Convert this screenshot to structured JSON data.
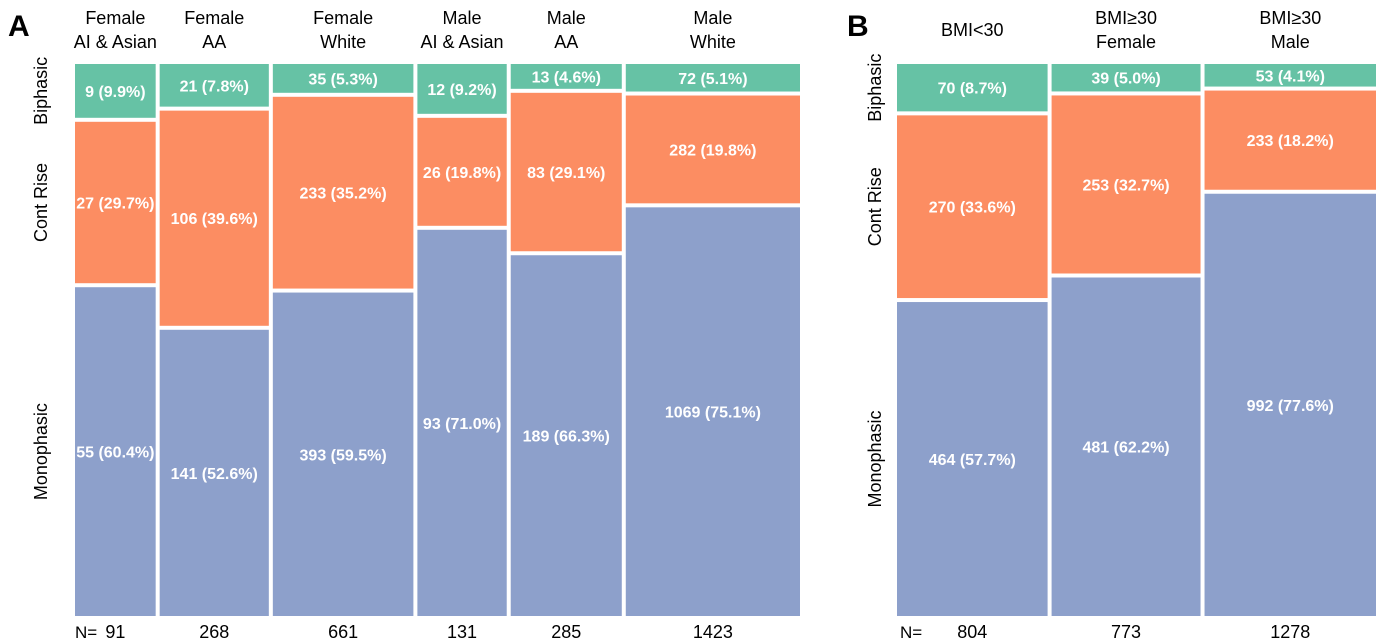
{
  "colors": {
    "biphasic": "#66c2a5",
    "cont_rise": "#fc8d62",
    "monophasic": "#8da0cb",
    "label_text": "#ffffff",
    "separator": "#ffffff"
  },
  "n_prefix": "N=",
  "chart_data": [
    {
      "type": "mosaic",
      "panel_label": "A",
      "row_labels": [
        "Biphasic",
        "Cont Rise",
        "Monophasic"
      ],
      "categories": [
        {
          "line1": "Female",
          "line2": "AI & Asian",
          "n": 91,
          "values": {
            "Biphasic": 9,
            "Cont Rise": 27,
            "Monophasic": 55
          },
          "labels": {
            "Biphasic": "9 (9.9%)",
            "Cont Rise": "27 (29.7%)",
            "Monophasic": "55 (60.4%)"
          }
        },
        {
          "line1": "Female",
          "line2": "AA",
          "n": 268,
          "values": {
            "Biphasic": 21,
            "Cont Rise": 106,
            "Monophasic": 141
          },
          "labels": {
            "Biphasic": "21 (7.8%)",
            "Cont Rise": "106 (39.6%)",
            "Monophasic": "141 (52.6%)"
          }
        },
        {
          "line1": "Female",
          "line2": "White",
          "n": 661,
          "values": {
            "Biphasic": 35,
            "Cont Rise": 233,
            "Monophasic": 393
          },
          "labels": {
            "Biphasic": "35 (5.3%)",
            "Cont Rise": "233 (35.2%)",
            "Monophasic": "393 (59.5%)"
          }
        },
        {
          "line1": "Male",
          "line2": "AI & Asian",
          "n": 131,
          "values": {
            "Biphasic": 12,
            "Cont Rise": 26,
            "Monophasic": 93
          },
          "labels": {
            "Biphasic": "12 (9.2%)",
            "Cont Rise": "26 (19.8%)",
            "Monophasic": "93 (71.0%)"
          }
        },
        {
          "line1": "Male",
          "line2": "AA",
          "n": 285,
          "values": {
            "Biphasic": 13,
            "Cont Rise": 83,
            "Monophasic": 189
          },
          "labels": {
            "Biphasic": "13 (4.6%)",
            "Cont Rise": "83 (29.1%)",
            "Monophasic": "189 (66.3%)"
          }
        },
        {
          "line1": "Male",
          "line2": "White",
          "n": 1423,
          "values": {
            "Biphasic": 72,
            "Cont Rise": 282,
            "Monophasic": 1069
          },
          "labels": {
            "Biphasic": "72 (5.1%)",
            "Cont Rise": "282 (19.8%)",
            "Monophasic": "1069 (75.1%)"
          }
        }
      ]
    },
    {
      "type": "mosaic",
      "panel_label": "B",
      "row_labels": [
        "Biphasic",
        "Cont Rise",
        "Monophasic"
      ],
      "categories": [
        {
          "line1": "BMI<30",
          "line2": "",
          "n": 804,
          "values": {
            "Biphasic": 70,
            "Cont Rise": 270,
            "Monophasic": 464
          },
          "labels": {
            "Biphasic": "70 (8.7%)",
            "Cont Rise": "270 (33.6%)",
            "Monophasic": "464 (57.7%)"
          }
        },
        {
          "line1": "BMI≥30",
          "line2": "Female",
          "n": 773,
          "values": {
            "Biphasic": 39,
            "Cont Rise": 253,
            "Monophasic": 481
          },
          "labels": {
            "Biphasic": "39 (5.0%)",
            "Cont Rise": "253 (32.7%)",
            "Monophasic": "481 (62.2%)"
          }
        },
        {
          "line1": "BMI≥30",
          "line2": "Male",
          "n": 1278,
          "values": {
            "Biphasic": 53,
            "Cont Rise": 233,
            "Monophasic": 992
          },
          "labels": {
            "Biphasic": "53 (4.1%)",
            "Cont Rise": "233 (18.2%)",
            "Monophasic": "992 (77.6%)"
          }
        }
      ]
    }
  ]
}
